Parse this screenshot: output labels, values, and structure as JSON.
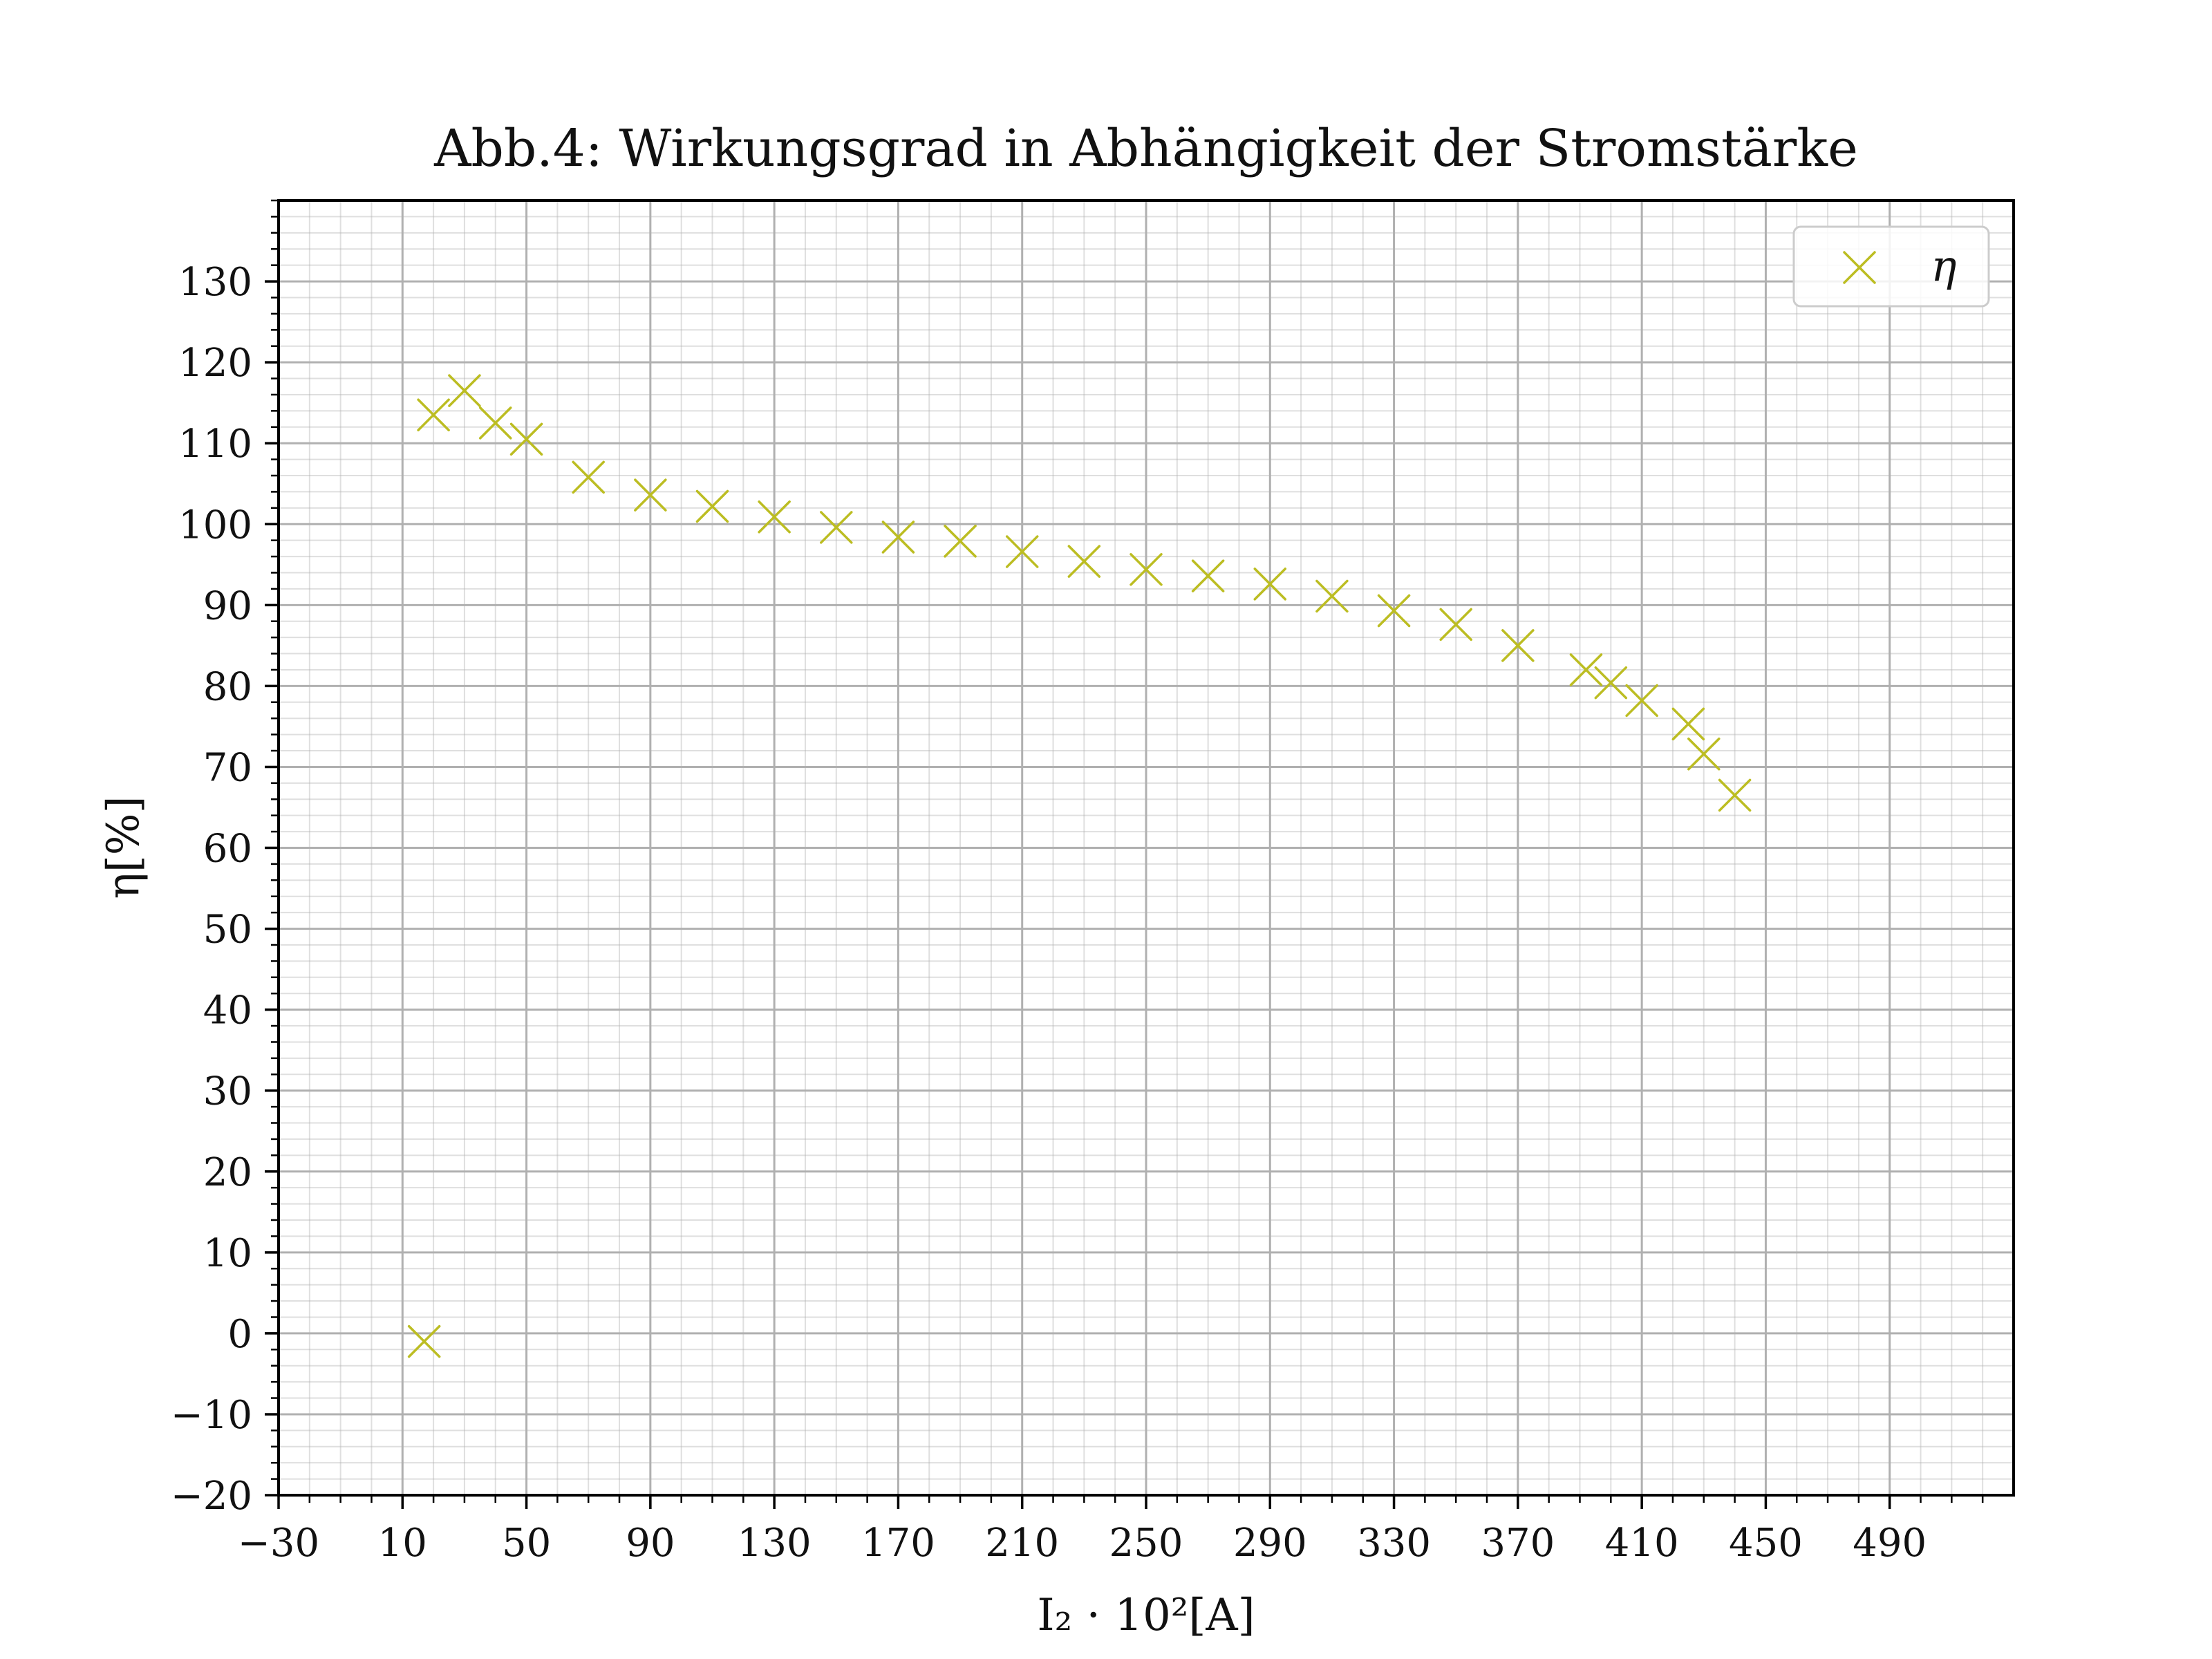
{
  "chart_data": {
    "type": "scatter",
    "title": "Abb.4: Wirkungsgrad in Abhängigkeit der Stromstärke",
    "xlabel": "I₂ · 10²[A]",
    "ylabel": "η[%]",
    "xlim": [
      -30,
      530
    ],
    "ylim": [
      -20,
      140
    ],
    "xticks": [
      -30,
      10,
      50,
      90,
      130,
      170,
      210,
      250,
      290,
      330,
      370,
      410,
      450,
      490
    ],
    "xtick_labels": [
      "−30",
      "10",
      "50",
      "90",
      "130",
      "170",
      "210",
      "250",
      "290",
      "330",
      "370",
      "410",
      "450",
      "490"
    ],
    "yticks": [
      -20,
      -10,
      0,
      10,
      20,
      30,
      40,
      50,
      60,
      70,
      80,
      90,
      100,
      110,
      120,
      130
    ],
    "ytick_labels": [
      "−20",
      "−10",
      "0",
      "10",
      "20",
      "30",
      "40",
      "50",
      "60",
      "70",
      "80",
      "90",
      "100",
      "110",
      "120",
      "130"
    ],
    "grid": true,
    "legend_position": "top-right",
    "series": [
      {
        "name": "η",
        "color": "#bcbd22",
        "marker": "x",
        "x": [
          17,
          20,
          30,
          40,
          50,
          70,
          90,
          110,
          130,
          150,
          170,
          190,
          210,
          230,
          250,
          270,
          290,
          310,
          330,
          350,
          370,
          392,
          400,
          410,
          425,
          430,
          440
        ],
        "y": [
          -1,
          113.5,
          116.5,
          112.5,
          110.5,
          105.8,
          103.6,
          102.2,
          100.9,
          99.6,
          98.4,
          97.9,
          96.6,
          95.4,
          94.4,
          93.6,
          92.6,
          91.1,
          89.3,
          87.6,
          85.0,
          82.0,
          80.4,
          78.2,
          75.3,
          71.6,
          66.5
        ]
      }
    ]
  }
}
